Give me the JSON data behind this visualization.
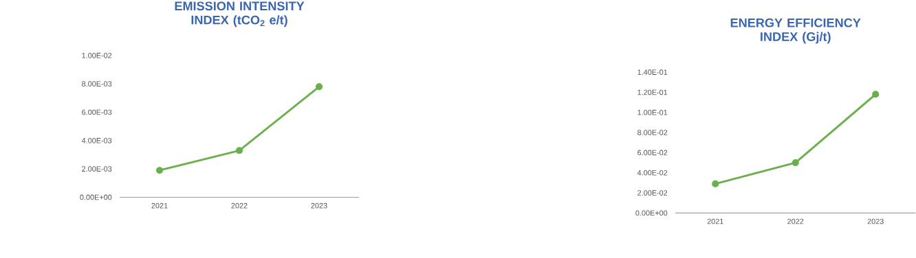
{
  "chart_data": [
    {
      "type": "line",
      "title": "EMISSION INTENSITY INDEX (tCO$_{2}$ e/t)",
      "categories": [
        "2021",
        "2022",
        "2023"
      ],
      "series": [
        {
          "color": "#6ab04c",
          "values": [
            0.0019,
            0.0033,
            0.0078
          ]
        }
      ],
      "ylim": [
        0,
        0.01
      ],
      "yticks": [
        {
          "value": 0,
          "label": "0.00E+00"
        },
        {
          "value": 0.002,
          "label": "2.00E-03"
        },
        {
          "value": 0.004,
          "label": "4.00E-03"
        },
        {
          "value": 0.006,
          "label": "6.00E-03"
        },
        {
          "value": 0.008,
          "label": "8.00E-03"
        },
        {
          "value": 0.01,
          "label": "1.00E-02"
        }
      ],
      "marker": "circle",
      "line_style": "solid"
    },
    {
      "type": "line",
      "title": "ENERGY EFFICIENCY INDEX (Gj/t)",
      "categories": [
        "2021",
        "2022",
        "2023"
      ],
      "series": [
        {
          "color": "#6ab04c",
          "values": [
            0.029,
            0.05,
            0.118
          ]
        }
      ],
      "ylim": [
        0,
        0.14
      ],
      "yticks": [
        {
          "value": 0,
          "label": "0.00E+00"
        },
        {
          "value": 0.02,
          "label": "2.00E-02"
        },
        {
          "value": 0.04,
          "label": "4.00E-02"
        },
        {
          "value": 0.06,
          "label": "6.00E-02"
        },
        {
          "value": 0.08,
          "label": "8.00E-02"
        },
        {
          "value": 0.1,
          "label": "1.00E-01"
        },
        {
          "value": 0.12,
          "label": "1.20E-01"
        },
        {
          "value": 0.14,
          "label": "1.40E-01"
        }
      ],
      "marker": "circle",
      "line_style": "solid"
    }
  ]
}
